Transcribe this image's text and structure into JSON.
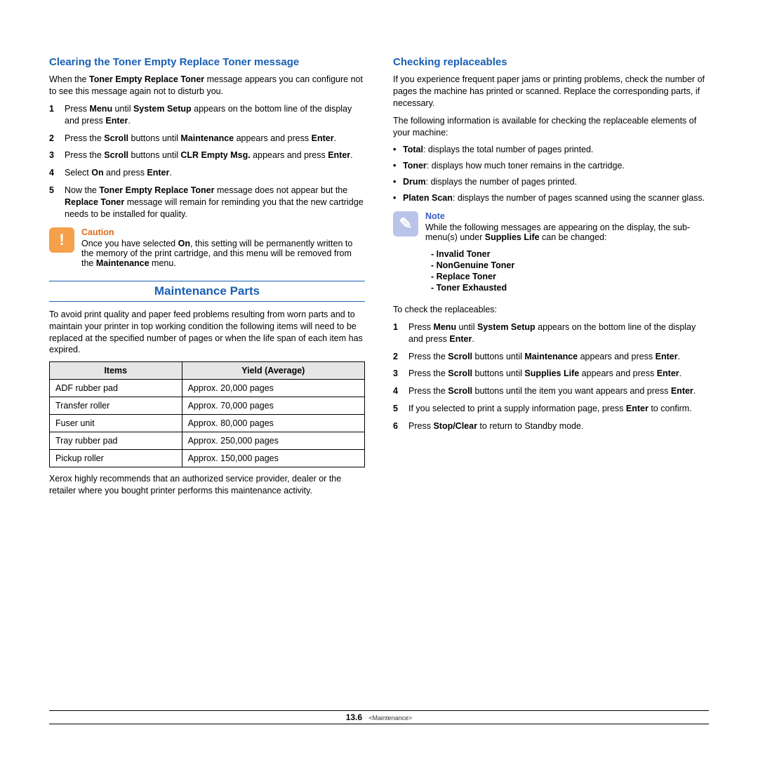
{
  "left": {
    "h1": "Clearing the Toner Empty Replace Toner message",
    "intro": "When the <b>Toner Empty Replace Toner</b> message appears you can configure not to see this message again not to disturb you.",
    "steps": [
      "Press <b>Menu</b> until <b>System Setup</b> appears on the bottom line of the display and press <b>Enter</b>.",
      "Press the <b>Scroll</b> buttons until <b>Maintenance</b> appears and press <b>Enter</b>.",
      "Press the <b>Scroll</b> buttons until <b>CLR Empty Msg.</b> appears and press <b>Enter</b>.",
      "Select <b>On</b> and press <b>Enter</b>.",
      "Now the <b>Toner Empty Replace Toner</b> message does not appear but the <b>Replace Toner</b> message will remain for reminding you that the new cartridge needs to be installed for quality."
    ],
    "caution_label": "Caution",
    "caution_body": "Once you have selected <b>On</b>, this setting will be permanently written to the memory of the print cartridge, and this menu will be removed from the <b>Maintenance</b> menu.",
    "h2": "Maintenance Parts",
    "parts_intro": "To avoid print quality and paper feed problems resulting from worn parts and to maintain your printer in top working condition the following items will need to be replaced at the specified number of pages or when the life span of each item has expired.",
    "table": {
      "headers": [
        "Items",
        "Yield (Average)"
      ],
      "rows": [
        [
          "ADF rubber pad",
          "Approx. 20,000 pages"
        ],
        [
          "Transfer roller",
          "Approx. 70,000 pages"
        ],
        [
          "Fuser unit",
          "Approx. 80,000 pages"
        ],
        [
          "Tray rubber pad",
          "Approx. 250,000 pages"
        ],
        [
          "Pickup roller",
          "Approx. 150,000 pages"
        ]
      ]
    },
    "parts_outro": "Xerox highly recommends that an authorized service provider, dealer or the retailer where you bought printer performs this maintenance activity."
  },
  "right": {
    "h1": "Checking replaceables",
    "p1": "If you experience frequent paper jams or printing problems, check the number of pages the machine has printed or scanned. Replace the corresponding parts, if necessary.",
    "p2": "The following information is available for checking the replaceable elements of your machine:",
    "bullets": [
      "<b>Total</b>: displays the total number of pages printed.",
      "<b>Toner</b>: displays how much toner remains in the cartridge.",
      "<b>Drum</b>: displays the number of pages printed.",
      "<b>Platen Scan</b>: displays the number of pages scanned using the scanner glass."
    ],
    "note_label": "Note",
    "note_body": "While the following messages are appearing on the display, the sub-menu(s) under <b>Supplies Life</b> can be changed:",
    "note_list": [
      "Invalid Toner",
      "NonGenuine Toner",
      "Replace Toner",
      "Toner Exhausted"
    ],
    "p3": "To check the replaceables:",
    "steps": [
      "Press <b>Menu</b> until <b>System Setup</b> appears on the bottom line of the display and press <b>Enter</b>.",
      "Press the <b>Scroll</b> buttons until <b>Maintenance</b> appears and press <b>Enter</b>.",
      "Press the <b>Scroll</b> buttons until <b>Supplies Life</b> appears and press <b>Enter</b>.",
      "Press the <b>Scroll</b> buttons until the item you want appears and press <b>Enter</b>.",
      "If you selected to print a supply information page, press <b>Enter</b> to confirm.",
      "Press <b>Stop/Clear</b> to return to Standby mode."
    ]
  },
  "footer": {
    "page": "13.6",
    "section": "<Maintenance>"
  }
}
